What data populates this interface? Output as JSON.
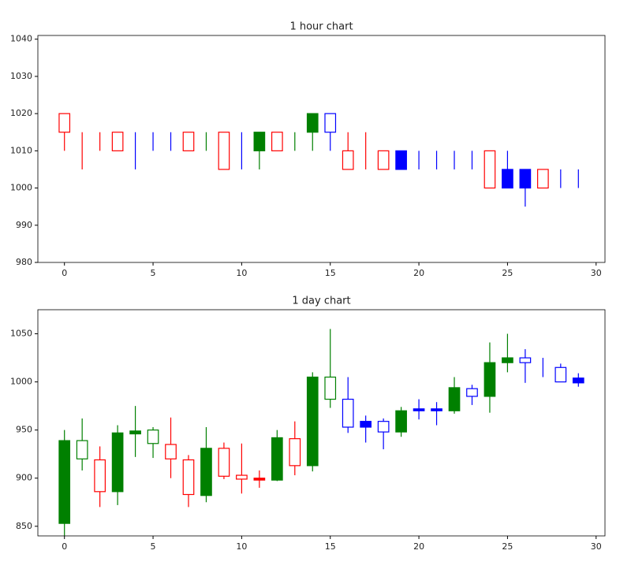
{
  "chart_data": [
    {
      "type": "candlestick",
      "title": "1 hour chart",
      "x": [
        0,
        1,
        2,
        3,
        4,
        5,
        6,
        7,
        8,
        9,
        10,
        11,
        12,
        13,
        14,
        15,
        16,
        17,
        18,
        19,
        20,
        21,
        22,
        23,
        24,
        25,
        26,
        27,
        28,
        29
      ],
      "open": [
        1015,
        1015,
        1010,
        1010,
        1015,
        1015,
        1015,
        1010,
        1015,
        1005,
        1010,
        1010,
        1010,
        1015,
        1015,
        1015,
        1005,
        1010,
        1005,
        1005,
        1010,
        1010,
        1010,
        1010,
        1000,
        1000,
        1000,
        1000,
        1005,
        1005
      ],
      "close": [
        1020,
        1015,
        1010,
        1015,
        1015,
        1015,
        1015,
        1015,
        1015,
        1015,
        1010,
        1015,
        1015,
        1015,
        1020,
        1020,
        1010,
        1010,
        1010,
        1010,
        1010,
        1010,
        1010,
        1010,
        1010,
        1005,
        1005,
        1005,
        1005,
        1005
      ],
      "high": [
        1020,
        1015,
        1015,
        1015,
        1015,
        1015,
        1015,
        1015,
        1015,
        1015,
        1015,
        1015,
        1015,
        1015,
        1020,
        1020,
        1015,
        1015,
        1010,
        1010,
        1010,
        1010,
        1010,
        1010,
        1010,
        1010,
        1005,
        1005,
        1005,
        1005
      ],
      "low": [
        1010,
        1005,
        1010,
        1010,
        1005,
        1010,
        1010,
        1010,
        1010,
        1005,
        1005,
        1005,
        1010,
        1010,
        1010,
        1010,
        1005,
        1005,
        1005,
        1005,
        1005,
        1005,
        1005,
        1005,
        1000,
        1000,
        995,
        1000,
        1000,
        1000
      ],
      "colors": [
        "red",
        "red",
        "red",
        "red",
        "blue",
        "blue",
        "blue",
        "red",
        "green",
        "red",
        "blue",
        "green",
        "red",
        "green",
        "green",
        "blue",
        "red",
        "red",
        "red",
        "blue",
        "blue",
        "blue",
        "blue",
        "blue",
        "red",
        "blue",
        "blue",
        "red",
        "blue",
        "blue"
      ],
      "filled": [
        false,
        false,
        false,
        false,
        false,
        false,
        false,
        false,
        false,
        false,
        false,
        true,
        false,
        false,
        true,
        false,
        false,
        false,
        false,
        true,
        false,
        false,
        false,
        false,
        false,
        true,
        true,
        false,
        false,
        false
      ],
      "xlim": [
        -1.5,
        30.5
      ],
      "ylim": [
        980,
        1041
      ],
      "xticks": [
        0,
        5,
        10,
        15,
        20,
        25,
        30
      ],
      "yticks": [
        980,
        990,
        1000,
        1010,
        1020,
        1030,
        1040
      ]
    },
    {
      "type": "candlestick",
      "title": "1 day chart",
      "x": [
        0,
        1,
        2,
        3,
        4,
        5,
        6,
        7,
        8,
        9,
        10,
        11,
        12,
        13,
        14,
        15,
        16,
        17,
        18,
        19,
        20,
        21,
        22,
        23,
        24,
        25,
        26,
        27,
        28,
        29
      ],
      "open": [
        853,
        920,
        886,
        886,
        946,
        936,
        920,
        883,
        882,
        902,
        899,
        898,
        898,
        913,
        913,
        982,
        953,
        953,
        948,
        948,
        970,
        970,
        970,
        985,
        985,
        1020,
        1020,
        1015,
        1000,
        999
      ],
      "close": [
        939,
        939,
        919,
        947,
        949,
        950,
        935,
        919,
        931,
        931,
        903,
        900,
        942,
        941,
        1005,
        1005,
        982,
        959,
        959,
        970,
        972,
        972,
        994,
        993,
        1020,
        1025,
        1025,
        1015,
        1015,
        1004
      ],
      "high": [
        950,
        962,
        933,
        955,
        975,
        953,
        963,
        924,
        953,
        937,
        936,
        908,
        950,
        959,
        1010,
        1055,
        1005,
        965,
        962,
        974,
        982,
        979,
        1005,
        997,
        1041,
        1050,
        1034,
        1025,
        1019,
        1009
      ],
      "low": [
        840,
        908,
        870,
        872,
        922,
        921,
        900,
        870,
        875,
        899,
        884,
        890,
        897,
        903,
        907,
        973,
        947,
        937,
        930,
        943,
        961,
        955,
        967,
        976,
        968,
        1010,
        999,
        1005,
        1000,
        995
      ],
      "colors": [
        "green",
        "green",
        "red",
        "green",
        "green",
        "green",
        "red",
        "red",
        "green",
        "red",
        "red",
        "red",
        "green",
        "red",
        "green",
        "green",
        "blue",
        "blue",
        "blue",
        "green",
        "blue",
        "blue",
        "green",
        "blue",
        "green",
        "green",
        "blue",
        "blue",
        "blue",
        "blue"
      ],
      "filled": [
        true,
        false,
        false,
        true,
        true,
        false,
        false,
        false,
        true,
        false,
        false,
        true,
        true,
        false,
        true,
        false,
        false,
        true,
        false,
        true,
        true,
        true,
        true,
        false,
        true,
        true,
        false,
        false,
        false,
        true
      ],
      "xlim": [
        -1.5,
        30.5
      ],
      "ylim": [
        840,
        1075
      ],
      "xticks": [
        0,
        5,
        10,
        15,
        20,
        25,
        30
      ],
      "yticks": [
        850,
        900,
        950,
        1000,
        1050
      ]
    }
  ]
}
